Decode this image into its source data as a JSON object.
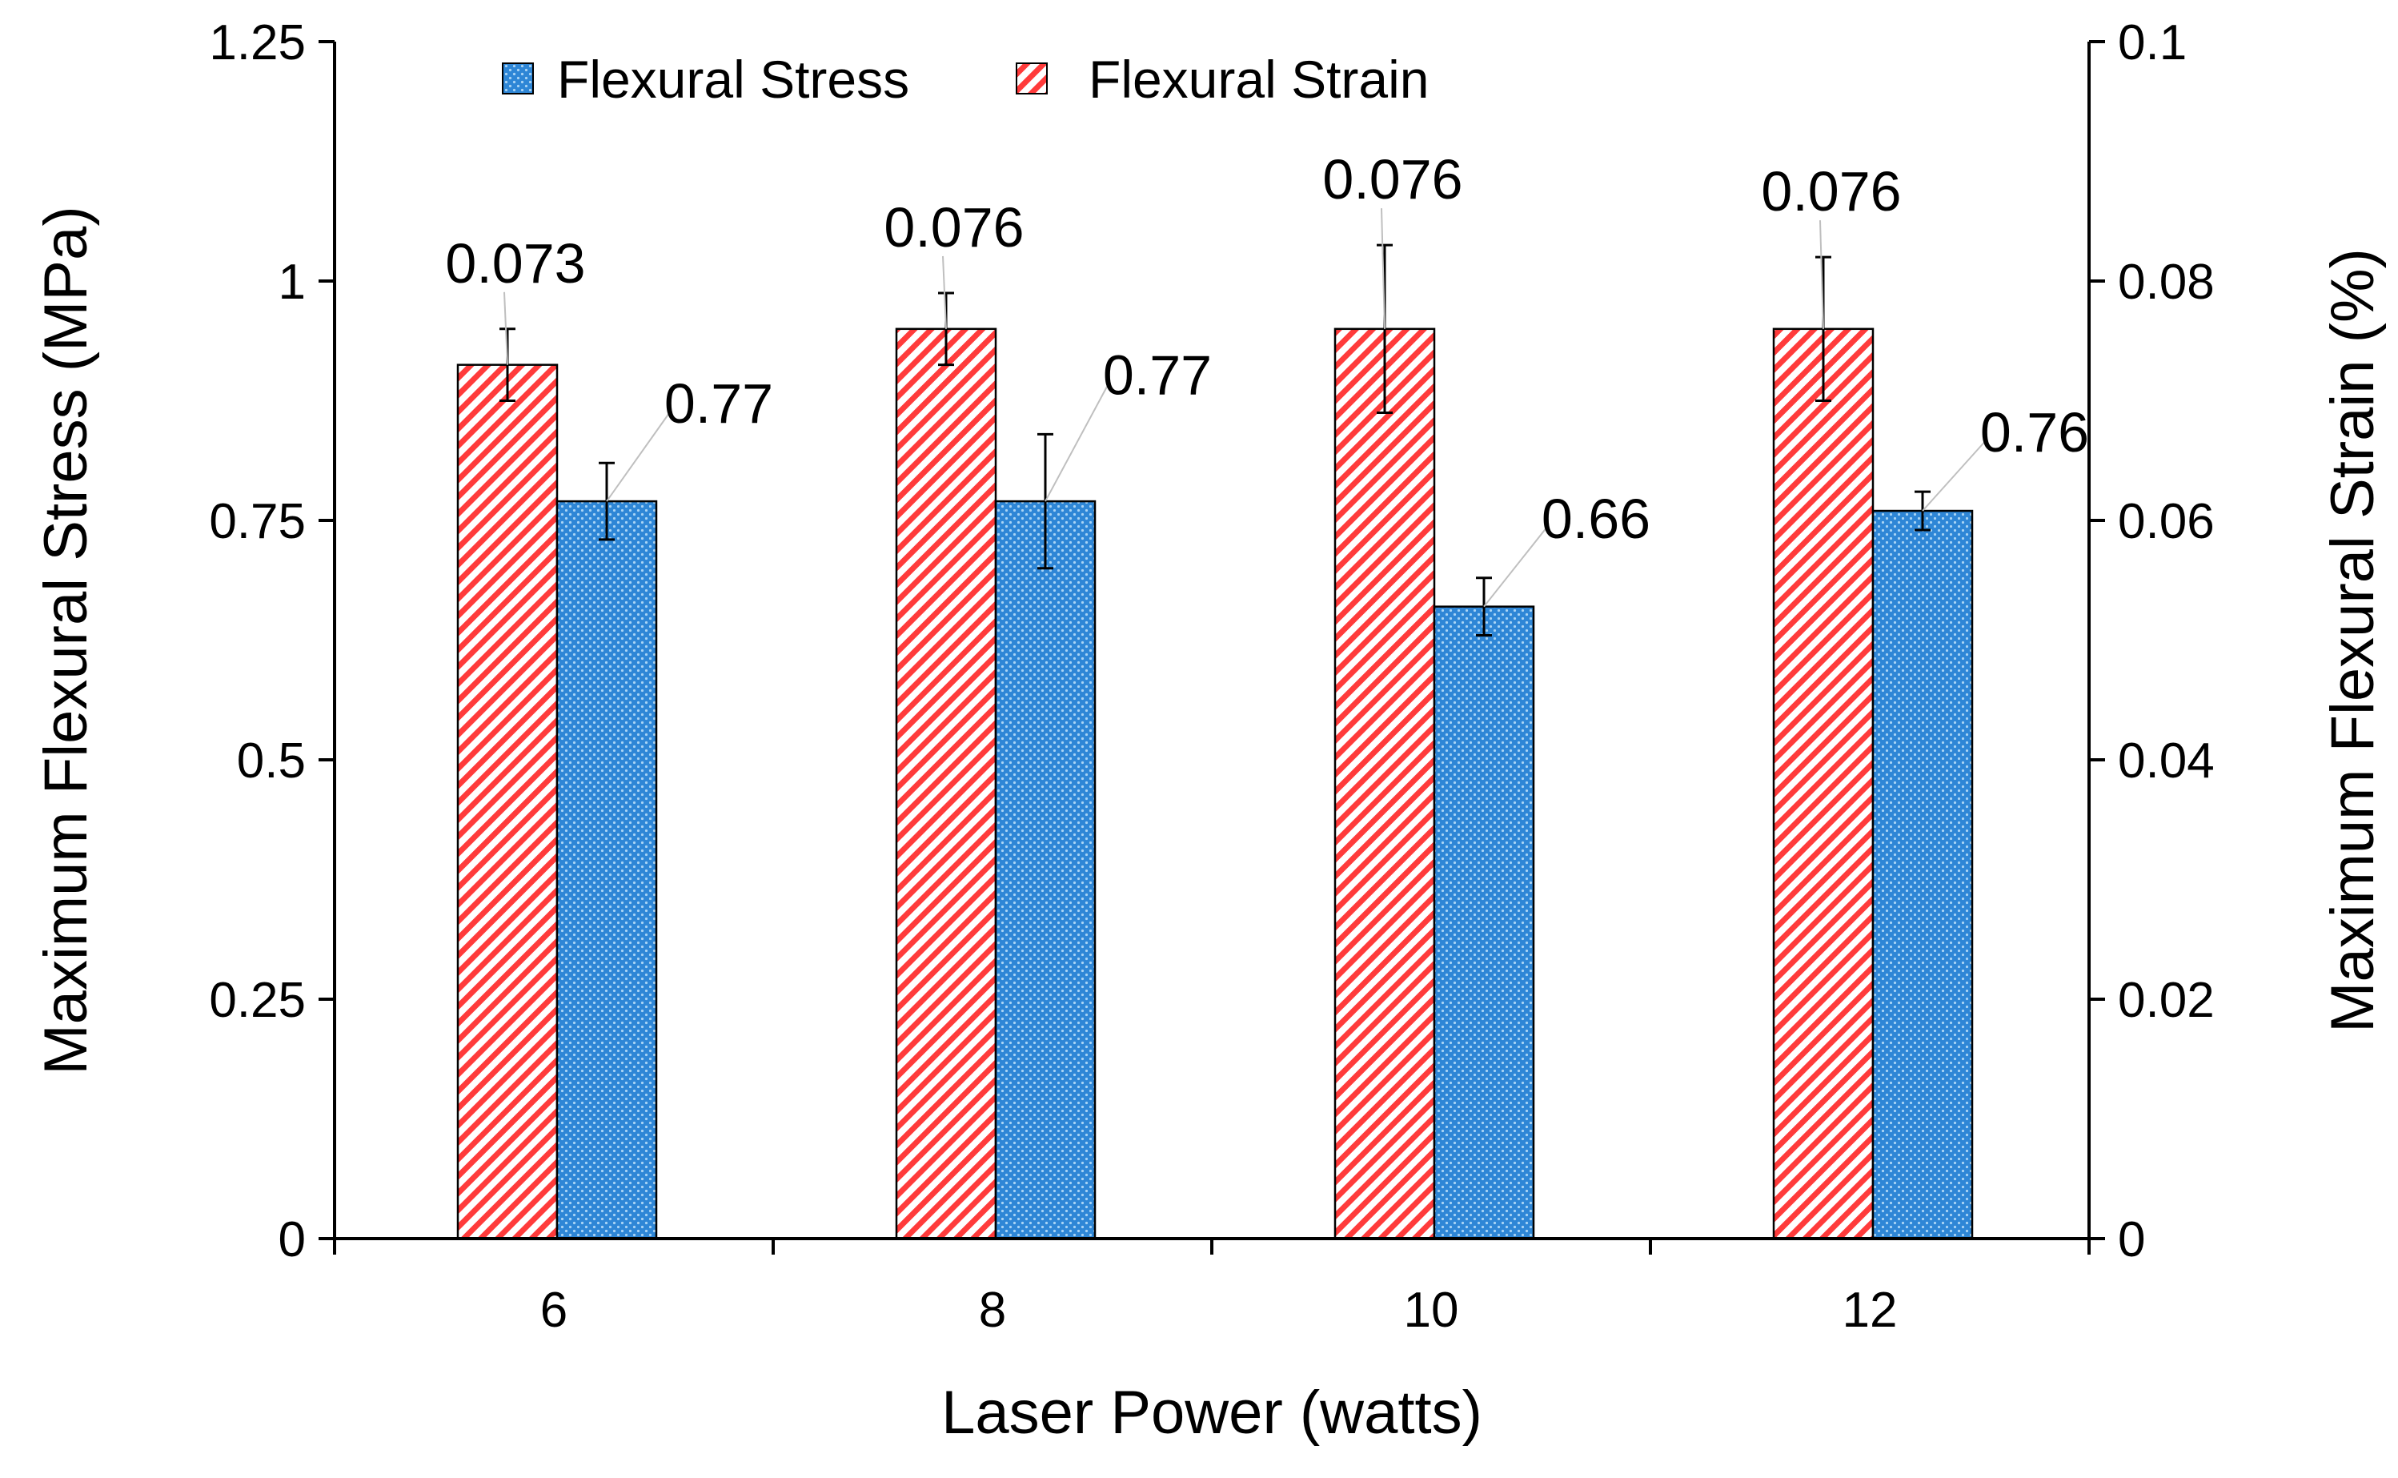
{
  "chart_data": {
    "type": "bar",
    "xlabel": "Laser Power (watts)",
    "ylabel": "Maximum Flexural Stress (MPa)",
    "y2label": "Maximum Flexural Strain (%)",
    "categories": [
      "6",
      "8",
      "10",
      "12"
    ],
    "ylim": [
      0,
      1.25
    ],
    "y2lim": [
      0,
      0.1
    ],
    "yticks": [
      "0",
      "0.25",
      "0.5",
      "0.75",
      "1",
      "1.25"
    ],
    "y2ticks": [
      "0",
      "0.02",
      "0.04",
      "0.06",
      "0.08",
      "0.1"
    ],
    "legend_position": "top-center",
    "series": [
      {
        "name": "Flexural Strain",
        "axis": "right",
        "pattern": "red-diagonal-hatch",
        "values": [
          0.073,
          0.076,
          0.076,
          0.076
        ],
        "errors": [
          0.003,
          0.003,
          0.007,
          0.006
        ],
        "labels": [
          "0.073",
          "0.076",
          "0.076",
          "0.076"
        ]
      },
      {
        "name": "Flexural Stress",
        "axis": "left",
        "pattern": "blue-checker",
        "values": [
          0.77,
          0.77,
          0.66,
          0.76
        ],
        "errors": [
          0.04,
          0.07,
          0.03,
          0.02
        ],
        "labels": [
          "0.77",
          "0.77",
          "0.66",
          "0.76"
        ]
      }
    ]
  },
  "colors": {
    "strain_hatch": "#ff3b3b",
    "stress_fill": "#2e86d6",
    "stress_dots": "#a9d4f5",
    "axis": "#000000",
    "leader": "#bfbfbf"
  }
}
